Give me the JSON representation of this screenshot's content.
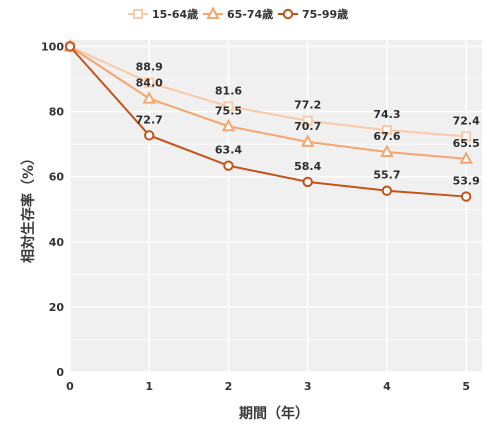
{
  "chart_data": {
    "type": "line",
    "x": [
      0,
      1,
      2,
      3,
      4,
      5
    ],
    "series": [
      {
        "name": "15-64歳",
        "values": [
          100,
          88.9,
          81.6,
          77.2,
          74.3,
          72.4
        ],
        "color": "#fbc9a6",
        "marker": "square",
        "labels": [
          "",
          "88.9",
          "81.6",
          "77.2",
          "74.3",
          "72.4"
        ]
      },
      {
        "name": "65-74歳",
        "values": [
          100,
          84.0,
          75.5,
          70.7,
          67.6,
          65.5
        ],
        "color": "#f5a66e",
        "marker": "triangle",
        "labels": [
          "",
          "84.0",
          "75.5",
          "70.7",
          "67.6",
          "65.5"
        ]
      },
      {
        "name": "75-99歳",
        "values": [
          100,
          72.7,
          63.4,
          58.4,
          55.7,
          53.9
        ],
        "color": "#c4531a",
        "marker": "circle",
        "labels": [
          "",
          "72.7",
          "63.4",
          "58.4",
          "55.7",
          "53.9"
        ]
      }
    ],
    "xlabel": "期間（年）",
    "ylabel": "相対生存率（%）",
    "xlim": [
      0,
      5.2
    ],
    "ylim": [
      0,
      102
    ],
    "x_ticks": [
      "0",
      "1",
      "2",
      "3",
      "4",
      "5"
    ],
    "y_ticks": [
      "0",
      "20",
      "40",
      "60",
      "80",
      "100"
    ],
    "grid": true,
    "legend_position": "top-center",
    "background": "#f0f0f0"
  }
}
